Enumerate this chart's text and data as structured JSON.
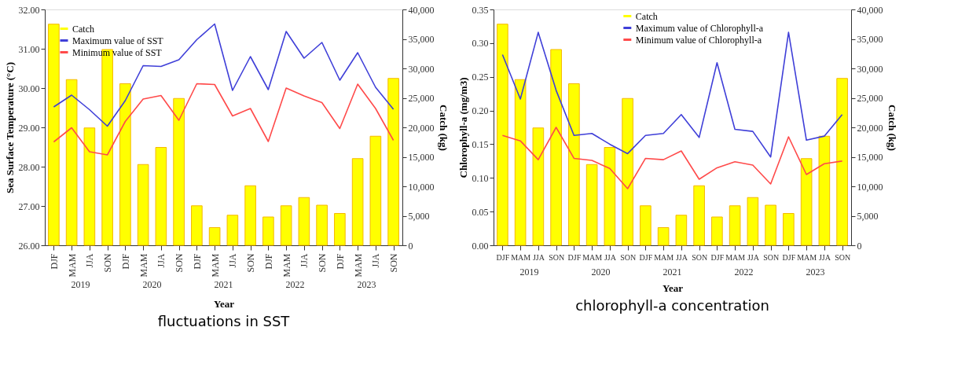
{
  "chart_data": [
    {
      "type": "bar",
      "title": "fluctuations in SST",
      "xlabel": "Year",
      "ylabel": "Sea Surface Temperature (°C)",
      "y2label": "Catch (kg)",
      "legend": "top left",
      "categories": [
        "DJF",
        "MAM",
        "JJA",
        "SON",
        "DJF",
        "MAM",
        "JJA",
        "SON",
        "DJF",
        "MAM",
        "JJA",
        "SON",
        "DJF",
        "MAM",
        "JJA",
        "SON",
        "DJF",
        "MAM",
        "JJA",
        "SON"
      ],
      "annotations": [
        "2019",
        "2020",
        "2021",
        "2022",
        "2023"
      ],
      "ylim": [
        26,
        32
      ],
      "yticks": [
        {
          "value": 26,
          "label": "26.00"
        },
        {
          "value": 27,
          "label": "27.00"
        },
        {
          "value": 28,
          "label": "28.00"
        },
        {
          "value": 29,
          "label": "29.00"
        },
        {
          "value": 30,
          "label": "30.00"
        },
        {
          "value": 31,
          "label": "31.00"
        },
        {
          "value": 32,
          "label": "32.00"
        }
      ],
      "y2lim": [
        0,
        40000
      ],
      "y2ticks": [
        0,
        {
          "value": 5000,
          "label": "5,000"
        },
        {
          "value": 10000,
          "label": "10,000"
        },
        {
          "value": 15000,
          "label": "15,000"
        },
        {
          "value": 20000,
          "label": "20,000"
        },
        {
          "value": 25000,
          "label": "25,000"
        },
        {
          "value": 30000,
          "label": "30,000"
        },
        {
          "value": 35000,
          "label": "35,000"
        },
        {
          "value": 40000,
          "label": "40,000"
        }
      ],
      "series": [
        {
          "name": "Catch",
          "type": "bar",
          "axis": "y2",
          "color": "#ffff00",
          "values": [
            37500,
            28100,
            19900,
            33200,
            27400,
            13700,
            16600,
            24900,
            6700,
            3000,
            5100,
            10100,
            4800,
            6700,
            8100,
            6800,
            5400,
            14700,
            18500,
            28300
          ]
        },
        {
          "name": "Maximum value of SST",
          "type": "line",
          "color": "#3f3fd8",
          "values": [
            29.52,
            29.82,
            29.45,
            29.03,
            29.68,
            30.57,
            30.55,
            30.72,
            31.23,
            31.63,
            29.94,
            30.8,
            29.96,
            31.44,
            30.76,
            31.16,
            30.2,
            30.9,
            30.02,
            29.46
          ]
        },
        {
          "name": "Minimum value of SST",
          "type": "line",
          "color": "#ff4a4a",
          "values": [
            28.63,
            28.99,
            28.38,
            28.3,
            29.15,
            29.72,
            29.81,
            29.18,
            30.11,
            30.09,
            29.29,
            29.48,
            28.64,
            30.0,
            29.8,
            29.63,
            28.97,
            30.1,
            29.48,
            28.67
          ]
        }
      ]
    },
    {
      "type": "bar",
      "title": "chlorophyll-a concentration",
      "xlabel": "Year",
      "ylabel": "Chlorophyll-a  (mg/m3)",
      "y2label": "Catch (kg)",
      "legend": "top",
      "categories": [
        "DJF",
        "MAM",
        "JJA",
        "SON",
        "DJF",
        "MAM",
        "JJA",
        "SON",
        "DJF",
        "MAM",
        "JJA",
        "SON",
        "DJF",
        "MAM",
        "JJA",
        "SON",
        "DJF",
        "MAM",
        "JJA",
        "SON"
      ],
      "annotations": [
        "2019",
        "2020",
        "2021",
        "2022",
        "2023"
      ],
      "ylim": [
        0,
        0.35
      ],
      "yticks": [
        {
          "value": 0,
          "label": "0.00"
        },
        {
          "value": 0.05,
          "label": "0.05"
        },
        {
          "value": 0.1,
          "label": "0.10"
        },
        {
          "value": 0.15,
          "label": "0.15"
        },
        {
          "value": 0.2,
          "label": "0.20"
        },
        {
          "value": 0.25,
          "label": "0.25"
        },
        {
          "value": 0.3,
          "label": "0.30"
        },
        {
          "value": 0.35,
          "label": "0.35"
        }
      ],
      "y2lim": [
        0,
        40000
      ],
      "y2ticks": [
        0,
        {
          "value": 5000,
          "label": "5,000"
        },
        {
          "value": 10000,
          "label": "10,000"
        },
        {
          "value": 15000,
          "label": "15,000"
        },
        {
          "value": 20000,
          "label": "20,000"
        },
        {
          "value": 25000,
          "label": "25,000"
        },
        {
          "value": 30000,
          "label": "30,000"
        },
        {
          "value": 35000,
          "label": "35,000"
        },
        {
          "value": 40000,
          "label": "40,000"
        }
      ],
      "series": [
        {
          "name": "Catch",
          "type": "bar",
          "axis": "y2",
          "color": "#ffff00",
          "values": [
            37500,
            28100,
            19900,
            33200,
            27400,
            13700,
            16600,
            24900,
            6700,
            3000,
            5100,
            10100,
            4800,
            6700,
            8100,
            6800,
            5400,
            14700,
            18500,
            28300
          ]
        },
        {
          "name": "Maximum value of Chlorophyll-a",
          "type": "line",
          "color": "#3f3fd8",
          "values": [
            0.283,
            0.217,
            0.316,
            0.23,
            0.163,
            0.166,
            0.15,
            0.136,
            0.163,
            0.166,
            0.194,
            0.16,
            0.271,
            0.172,
            0.169,
            0.131,
            0.316,
            0.156,
            0.162,
            0.194
          ]
        },
        {
          "name": "Minimum value of Chlorophyll-a",
          "type": "line",
          "color": "#ff4a4a",
          "values": [
            0.163,
            0.155,
            0.127,
            0.175,
            0.129,
            0.126,
            0.114,
            0.084,
            0.129,
            0.127,
            0.14,
            0.098,
            0.115,
            0.124,
            0.119,
            0.091,
            0.161,
            0.105,
            0.121,
            0.125
          ]
        }
      ]
    }
  ]
}
